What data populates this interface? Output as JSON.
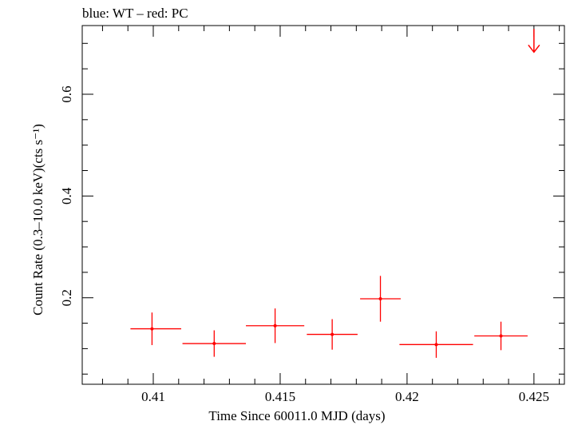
{
  "chart_data": {
    "type": "scatter",
    "title": "blue: WT – red: PC",
    "xlabel": "Time Since 60011.0 MJD (days)",
    "ylabel": "Count Rate (0.3–10.0 keV)(cts s⁻¹)",
    "xlim": [
      0.4072,
      0.4262
    ],
    "ylim": [
      0.03,
      0.735
    ],
    "x_ticks": [
      "0.41",
      "0.415",
      "0.42",
      "0.425"
    ],
    "y_ticks": [
      "0.2",
      "0.4",
      "0.6"
    ],
    "grid": false,
    "colors": {
      "PC": "#ff0000",
      "WT": "#0000ff"
    },
    "series": [
      {
        "name": "PC",
        "points": [
          {
            "x": 0.40995,
            "y": 0.139,
            "xerr_lo": 0.00085,
            "xerr_hi": 0.00115,
            "yerr": 0.032
          },
          {
            "x": 0.4124,
            "y": 0.11,
            "xerr_lo": 0.00125,
            "xerr_hi": 0.00125,
            "yerr": 0.026
          },
          {
            "x": 0.4148,
            "y": 0.145,
            "xerr_lo": 0.00115,
            "xerr_hi": 0.00115,
            "yerr": 0.034
          },
          {
            "x": 0.41705,
            "y": 0.128,
            "xerr_lo": 0.001,
            "xerr_hi": 0.001,
            "yerr": 0.03
          },
          {
            "x": 0.41895,
            "y": 0.198,
            "xerr_lo": 0.0008,
            "xerr_hi": 0.0008,
            "yerr": 0.045
          },
          {
            "x": 0.42115,
            "y": 0.108,
            "xerr_lo": 0.00145,
            "xerr_hi": 0.00145,
            "yerr": 0.026
          },
          {
            "x": 0.4237,
            "y": 0.125,
            "xerr_lo": 0.00105,
            "xerr_hi": 0.00105,
            "yerr": 0.028
          }
        ],
        "upper_limits": [
          {
            "x": 0.425,
            "y": 0.7
          }
        ]
      }
    ]
  }
}
